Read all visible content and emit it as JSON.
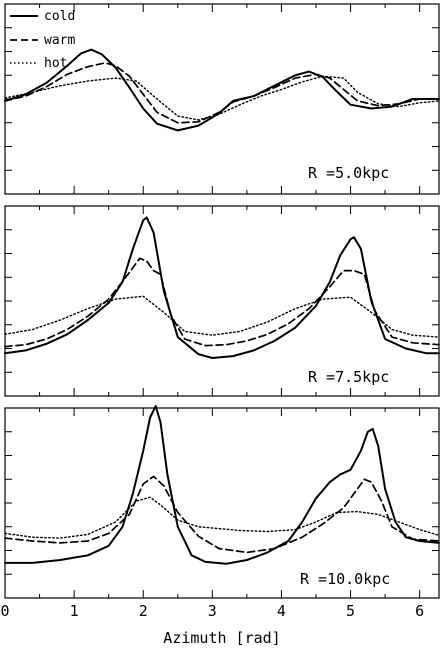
{
  "chart_data": [
    {
      "type": "line",
      "annotation": "R =5.0kpc",
      "xlabel": "",
      "ylabel": "",
      "xlim": [
        0,
        6.28
      ],
      "ylim": [
        -1,
        1
      ],
      "xticks": [
        0,
        1,
        2,
        3,
        4,
        5,
        6
      ],
      "tick_labels_shown": false,
      "legend": {
        "placement": "top-left",
        "entries": [
          "cold",
          "warm",
          "hot"
        ]
      },
      "series": [
        {
          "name": "cold",
          "style": "solid",
          "x": [
            0,
            0.3,
            0.6,
            0.9,
            1.1,
            1.25,
            1.4,
            1.6,
            1.8,
            2.0,
            2.2,
            2.5,
            2.8,
            3.1,
            3.3,
            3.6,
            3.9,
            4.2,
            4.4,
            4.6,
            4.8,
            5.0,
            5.3,
            5.6,
            5.9,
            6.28
          ],
          "y": [
            -0.02,
            0.05,
            0.17,
            0.35,
            0.48,
            0.52,
            0.47,
            0.33,
            0.12,
            -0.1,
            -0.26,
            -0.33,
            -0.28,
            -0.15,
            -0.02,
            0.03,
            0.14,
            0.25,
            0.29,
            0.23,
            0.08,
            -0.06,
            -0.1,
            -0.08,
            0.0,
            0.0
          ]
        },
        {
          "name": "warm",
          "style": "dashed",
          "x": [
            0,
            0.3,
            0.6,
            0.9,
            1.2,
            1.45,
            1.6,
            1.8,
            2.0,
            2.2,
            2.5,
            2.8,
            3.1,
            3.3,
            3.6,
            3.9,
            4.2,
            4.5,
            4.7,
            4.9,
            5.1,
            5.4,
            5.7,
            6.0,
            6.28
          ],
          "y": [
            -0.02,
            0.03,
            0.13,
            0.26,
            0.34,
            0.38,
            0.35,
            0.24,
            0.05,
            -0.14,
            -0.25,
            -0.24,
            -0.14,
            -0.03,
            0.03,
            0.12,
            0.22,
            0.26,
            0.22,
            0.1,
            -0.02,
            -0.07,
            -0.05,
            0.0,
            0.0
          ]
        },
        {
          "name": "hot",
          "style": "dotted",
          "x": [
            0,
            0.4,
            0.8,
            1.2,
            1.6,
            1.9,
            2.2,
            2.5,
            2.8,
            3.1,
            3.4,
            3.7,
            4.0,
            4.3,
            4.6,
            4.9,
            5.1,
            5.4,
            5.7,
            6.0,
            6.28
          ],
          "y": [
            0.01,
            0.07,
            0.14,
            0.19,
            0.22,
            0.19,
            0.0,
            -0.18,
            -0.22,
            -0.16,
            -0.06,
            0.03,
            0.1,
            0.18,
            0.24,
            0.22,
            0.07,
            -0.05,
            -0.08,
            -0.04,
            -0.02
          ]
        }
      ]
    },
    {
      "type": "line",
      "annotation": "R =7.5kpc",
      "xlabel": "",
      "ylabel": "",
      "xlim": [
        0,
        6.28
      ],
      "ylim": [
        -1,
        1
      ],
      "xticks": [
        0,
        1,
        2,
        3,
        4,
        5,
        6
      ],
      "tick_labels_shown": false,
      "series": [
        {
          "name": "cold",
          "style": "solid",
          "x": [
            0,
            0.3,
            0.6,
            0.9,
            1.2,
            1.5,
            1.7,
            1.85,
            2.0,
            2.05,
            2.15,
            2.3,
            2.5,
            2.8,
            3.0,
            3.3,
            3.6,
            3.9,
            4.2,
            4.5,
            4.7,
            4.85,
            5.0,
            5.05,
            5.15,
            5.3,
            5.5,
            5.8,
            6.1,
            6.28
          ],
          "y": [
            -0.55,
            -0.52,
            -0.45,
            -0.35,
            -0.2,
            -0.02,
            0.2,
            0.55,
            0.85,
            0.88,
            0.72,
            0.1,
            -0.38,
            -0.56,
            -0.6,
            -0.58,
            -0.52,
            -0.42,
            -0.28,
            -0.05,
            0.2,
            0.48,
            0.65,
            0.67,
            0.55,
            0.0,
            -0.4,
            -0.5,
            -0.55,
            -0.55
          ]
        },
        {
          "name": "warm",
          "style": "dashed",
          "x": [
            0,
            0.3,
            0.6,
            0.9,
            1.2,
            1.5,
            1.8,
            1.95,
            2.05,
            2.15,
            2.25,
            2.4,
            2.6,
            2.9,
            3.2,
            3.5,
            3.8,
            4.1,
            4.4,
            4.7,
            4.9,
            5.05,
            5.2,
            5.35,
            5.6,
            5.9,
            6.28
          ],
          "y": [
            -0.48,
            -0.46,
            -0.4,
            -0.3,
            -0.16,
            0.02,
            0.3,
            0.45,
            0.42,
            0.32,
            0.28,
            -0.15,
            -0.4,
            -0.47,
            -0.46,
            -0.42,
            -0.35,
            -0.24,
            -0.08,
            0.15,
            0.32,
            0.32,
            0.28,
            -0.1,
            -0.38,
            -0.44,
            -0.46
          ]
        },
        {
          "name": "hot",
          "style": "dotted",
          "x": [
            0,
            0.4,
            0.8,
            1.2,
            1.6,
            2.0,
            2.3,
            2.6,
            3.0,
            3.4,
            3.8,
            4.2,
            4.6,
            5.0,
            5.3,
            5.6,
            5.9,
            6.28
          ],
          "y": [
            -0.35,
            -0.3,
            -0.2,
            -0.08,
            0.02,
            0.05,
            -0.12,
            -0.32,
            -0.36,
            -0.32,
            -0.22,
            -0.08,
            0.02,
            0.04,
            -0.12,
            -0.3,
            -0.36,
            -0.38
          ]
        }
      ]
    },
    {
      "type": "line",
      "annotation": "R =10.0kpc",
      "xlabel": "Azimuth [rad]",
      "ylabel": "",
      "xlim": [
        0,
        6.28
      ],
      "ylim": [
        -1,
        1
      ],
      "xticks": [
        0,
        1,
        2,
        3,
        4,
        5,
        6
      ],
      "tick_labels_shown": true,
      "series": [
        {
          "name": "cold",
          "style": "solid",
          "x": [
            0,
            0.4,
            0.8,
            1.2,
            1.5,
            1.7,
            1.85,
            2.0,
            2.1,
            2.18,
            2.25,
            2.35,
            2.5,
            2.7,
            2.9,
            3.2,
            3.5,
            3.8,
            4.1,
            4.3,
            4.5,
            4.7,
            4.85,
            5.0,
            5.15,
            5.25,
            5.32,
            5.4,
            5.5,
            5.65,
            5.8,
            6.0,
            6.28
          ],
          "y": [
            -0.63,
            -0.63,
            -0.6,
            -0.55,
            -0.45,
            -0.25,
            0.1,
            0.55,
            0.9,
            1.02,
            0.85,
            0.3,
            -0.25,
            -0.55,
            -0.62,
            -0.64,
            -0.6,
            -0.52,
            -0.4,
            -0.2,
            0.05,
            0.22,
            0.3,
            0.35,
            0.55,
            0.75,
            0.78,
            0.6,
            0.15,
            -0.2,
            -0.36,
            -0.4,
            -0.42
          ]
        },
        {
          "name": "warm",
          "style": "dashed",
          "x": [
            0,
            0.4,
            0.8,
            1.2,
            1.5,
            1.8,
            2.0,
            2.15,
            2.3,
            2.5,
            2.8,
            3.1,
            3.5,
            3.9,
            4.3,
            4.6,
            4.9,
            5.1,
            5.2,
            5.3,
            5.45,
            5.6,
            5.9,
            6.28
          ],
          "y": [
            -0.37,
            -0.4,
            -0.42,
            -0.4,
            -0.32,
            -0.12,
            0.2,
            0.28,
            0.18,
            -0.1,
            -0.35,
            -0.48,
            -0.52,
            -0.48,
            -0.36,
            -0.22,
            -0.05,
            0.15,
            0.25,
            0.22,
            0.02,
            -0.25,
            -0.38,
            -0.4
          ]
        },
        {
          "name": "hot",
          "style": "dotted",
          "x": [
            0,
            0.4,
            0.8,
            1.2,
            1.6,
            1.9,
            2.1,
            2.25,
            2.5,
            2.8,
            3.1,
            3.4,
            3.8,
            4.2,
            4.5,
            4.8,
            5.1,
            5.4,
            5.7,
            6.0,
            6.28
          ],
          "y": [
            -0.32,
            -0.36,
            -0.37,
            -0.33,
            -0.2,
            0.02,
            0.06,
            -0.02,
            -0.18,
            -0.25,
            -0.27,
            -0.29,
            -0.3,
            -0.28,
            -0.2,
            -0.1,
            -0.09,
            -0.12,
            -0.2,
            -0.28,
            -0.34
          ]
        }
      ]
    }
  ]
}
